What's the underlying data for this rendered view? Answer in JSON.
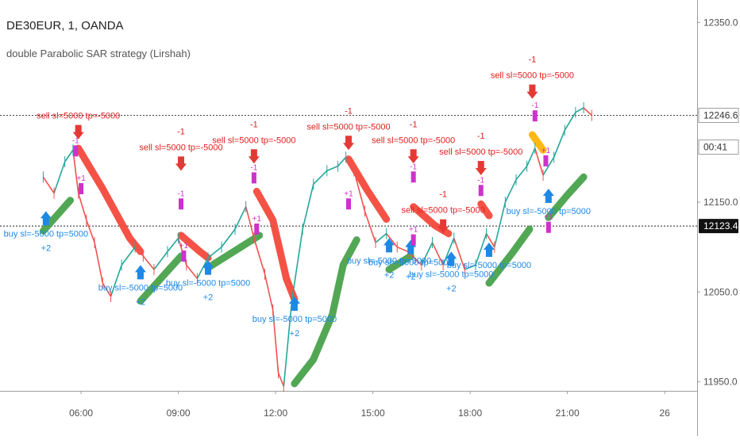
{
  "header": {
    "title": "DE30EUR, 1, OANDA",
    "study": "double Parabolic SAR strategy (Lirshah)"
  },
  "price_badges": {
    "last": "12246.6",
    "countdown": "00:41",
    "line": "12123.4"
  },
  "colors": {
    "sar_down": "#f44336",
    "sar_down_alt": "#ffb300",
    "sar_up": "#43a047",
    "sell_arrow": "#e53935",
    "buy_arrow": "#1e88e5",
    "exit_mark": "#cc33cc",
    "candle_up": "#26a69a",
    "candle_down": "#ef5350"
  },
  "chart_data": {
    "type": "line",
    "title": "DE30EUR, 1, OANDA",
    "xlabel": "",
    "ylabel": "",
    "x_ticks": [
      "06:00",
      "09:00",
      "12:00",
      "15:00",
      "18:00",
      "21:00",
      "26"
    ],
    "y_ticks": [
      12350.0,
      12250.0,
      12150.0,
      12050.0,
      11950.0
    ],
    "ylim": [
      11940,
      12375
    ],
    "grid": false,
    "last_price": 12246.6,
    "horizontal_line": 12123.4,
    "price_path": [
      [
        "04:50",
        12178
      ],
      [
        "05:10",
        12160
      ],
      [
        "05:30",
        12195
      ],
      [
        "05:45",
        12208
      ],
      [
        "05:55",
        12160
      ],
      [
        "06:10",
        12130
      ],
      [
        "06:25",
        12105
      ],
      [
        "06:40",
        12060
      ],
      [
        "06:55",
        12045
      ],
      [
        "07:15",
        12080
      ],
      [
        "07:40",
        12100
      ],
      [
        "07:55",
        12090
      ],
      [
        "08:15",
        12075
      ],
      [
        "08:40",
        12095
      ],
      [
        "09:00",
        12110
      ],
      [
        "09:15",
        12080
      ],
      [
        "09:35",
        12065
      ],
      [
        "09:55",
        12088
      ],
      [
        "10:20",
        12100
      ],
      [
        "10:45",
        12120
      ],
      [
        "11:05",
        12145
      ],
      [
        "11:20",
        12110
      ],
      [
        "11:40",
        12070
      ],
      [
        "11:55",
        12030
      ],
      [
        "12:05",
        11960
      ],
      [
        "12:15",
        11945
      ],
      [
        "12:30",
        12040
      ],
      [
        "12:50",
        12120
      ],
      [
        "13:10",
        12170
      ],
      [
        "13:35",
        12185
      ],
      [
        "13:55",
        12190
      ],
      [
        "14:10",
        12200
      ],
      [
        "14:25",
        12185
      ],
      [
        "14:45",
        12140
      ],
      [
        "15:05",
        12105
      ],
      [
        "15:25",
        12115
      ],
      [
        "15:45",
        12100
      ],
      [
        "16:05",
        12095
      ],
      [
        "16:30",
        12080
      ],
      [
        "16:50",
        12105
      ],
      [
        "17:10",
        12080
      ],
      [
        "17:30",
        12110
      ],
      [
        "17:50",
        12075
      ],
      [
        "18:10",
        12080
      ],
      [
        "18:30",
        12115
      ],
      [
        "18:45",
        12100
      ],
      [
        "19:05",
        12150
      ],
      [
        "19:25",
        12175
      ],
      [
        "19:45",
        12190
      ],
      [
        "20:00",
        12210
      ],
      [
        "20:15",
        12180
      ],
      [
        "20:35",
        12200
      ],
      [
        "20:55",
        12230
      ],
      [
        "21:15",
        12250
      ],
      [
        "21:30",
        12255
      ],
      [
        "21:45",
        12246.6
      ]
    ],
    "series": [
      {
        "role": "sar_down",
        "segments": [
          [
            [
              "05:55",
              12210
            ],
            [
              "06:40",
              12165
            ],
            [
              "07:30",
              12110
            ],
            [
              "07:50",
              12095
            ]
          ],
          [
            [
              "09:05",
              12113
            ],
            [
              "09:40",
              12095
            ],
            [
              "09:55",
              12088
            ]
          ],
          [
            [
              "11:25",
              12162
            ],
            [
              "11:55",
              12130
            ],
            [
              "12:20",
              12065
            ],
            [
              "12:35",
              12042
            ]
          ],
          [
            [
              "14:15",
              12198
            ],
            [
              "14:50",
              12163
            ],
            [
              "15:25",
              12131
            ]
          ],
          [
            [
              "16:15",
              12145
            ],
            [
              "16:55",
              12124
            ],
            [
              "17:20",
              12115
            ]
          ],
          [
            [
              "18:20",
              12148
            ],
            [
              "18:35",
              12135
            ]
          ],
          [
            [
              "19:55",
              12225
            ],
            [
              "20:15",
              12208
            ]
          ]
        ]
      },
      {
        "role": "sar_up",
        "segments": [
          [
            [
              "04:50",
              12118
            ],
            [
              "05:40",
              12152
            ]
          ],
          [
            [
              "07:50",
              12040
            ],
            [
              "09:05",
              12090
            ]
          ],
          [
            [
              "09:55",
              12077
            ],
            [
              "11:30",
              12113
            ]
          ],
          [
            [
              "12:35",
              11948
            ],
            [
              "13:10",
              11975
            ],
            [
              "13:45",
              12025
            ],
            [
              "14:05",
              12080
            ],
            [
              "14:30",
              12108
            ]
          ],
          [
            [
              "15:30",
              12075
            ],
            [
              "16:10",
              12090
            ]
          ],
          [
            [
              "18:35",
              12060
            ],
            [
              "19:20",
              12095
            ],
            [
              "19:50",
              12120
            ]
          ],
          [
            [
              "20:25",
              12133
            ],
            [
              "21:00",
              12158
            ],
            [
              "21:30",
              12178
            ]
          ]
        ]
      }
    ],
    "annotations": [
      {
        "kind": "sell",
        "x": "05:55",
        "y": 12220,
        "label": "sell sl=5000 tp=-5000"
      },
      {
        "kind": "sell",
        "x": "09:05",
        "y": 12185,
        "label": "sell sl=5000 tp=-5000",
        "count": "-1"
      },
      {
        "kind": "sell",
        "x": "11:20",
        "y": 12193,
        "label": "sell sl=5000 tp=-5000",
        "count": "-1"
      },
      {
        "kind": "sell",
        "x": "14:15",
        "y": 12208,
        "label": "sell sl=5000 tp=-5000",
        "count": "-1"
      },
      {
        "kind": "sell",
        "x": "16:15",
        "y": 12193,
        "label": "sell sl=5000 tp=-5000",
        "count": "-1"
      },
      {
        "kind": "sell",
        "x": "18:20",
        "y": 12180,
        "label": "sell sl=5000 tp=-5000",
        "count": "-1"
      },
      {
        "kind": "sell",
        "x": "19:55",
        "y": 12265,
        "label": "sell sl=5000 tp=-5000",
        "count": "-1"
      },
      {
        "kind": "sell",
        "x": "17:10",
        "y": 12115,
        "label": "sell sl=5000 tp=-5000",
        "count": "-1"
      },
      {
        "kind": "buy",
        "x": "04:55",
        "y": 12140,
        "label": "buy sl=-5000 tp=5000",
        "count": "+2"
      },
      {
        "kind": "buy",
        "x": "07:50",
        "y": 12080,
        "label": "buy sl=-5000 tp=5000",
        "count": "+2"
      },
      {
        "kind": "buy",
        "x": "09:55",
        "y": 12085,
        "label": "buy sl=-5000 tp=5000",
        "count": "+2"
      },
      {
        "kind": "buy",
        "x": "12:35",
        "y": 12045,
        "label": "buy sl=-5000 tp=5000",
        "count": "+2"
      },
      {
        "kind": "buy",
        "x": "15:30",
        "y": 12110,
        "label": "buy sl=-5000 tp=5000",
        "count": "+2"
      },
      {
        "kind": "buy",
        "x": "16:10",
        "y": 12108,
        "label": "buy sl=-5000 tp=5000",
        "count": "+2"
      },
      {
        "kind": "buy",
        "x": "17:25",
        "y": 12095,
        "label": "buy sl=-5000 tp=5000",
        "count": "+2"
      },
      {
        "kind": "buy",
        "x": "18:35",
        "y": 12105,
        "label": "buy sl=-5000 tp=5000"
      },
      {
        "kind": "buy",
        "x": "20:25",
        "y": 12165,
        "label": "buy sl=-5000 tp=5000"
      }
    ],
    "exit_marks": [
      {
        "x": "05:50",
        "y": 12207,
        "label": "-1"
      },
      {
        "x": "06:00",
        "y": 12165,
        "label": "+1"
      },
      {
        "x": "09:05",
        "y": 12148,
        "label": "-1"
      },
      {
        "x": "09:10",
        "y": 12090,
        "label": "+1"
      },
      {
        "x": "11:20",
        "y": 12177,
        "label": "-1"
      },
      {
        "x": "11:25",
        "y": 12120,
        "label": "+1"
      },
      {
        "x": "14:15",
        "y": 12148,
        "label": "+1"
      },
      {
        "x": "16:15",
        "y": 12178,
        "label": "-1"
      },
      {
        "x": "16:15",
        "y": 12108,
        "label": "+1"
      },
      {
        "x": "18:20",
        "y": 12163,
        "label": "-1"
      },
      {
        "x": "20:00",
        "y": 12246,
        "label": "-1"
      },
      {
        "x": "20:20",
        "y": 12196,
        "label": "+1"
      },
      {
        "x": "20:25",
        "y": 12122,
        "label": "+1"
      }
    ]
  }
}
